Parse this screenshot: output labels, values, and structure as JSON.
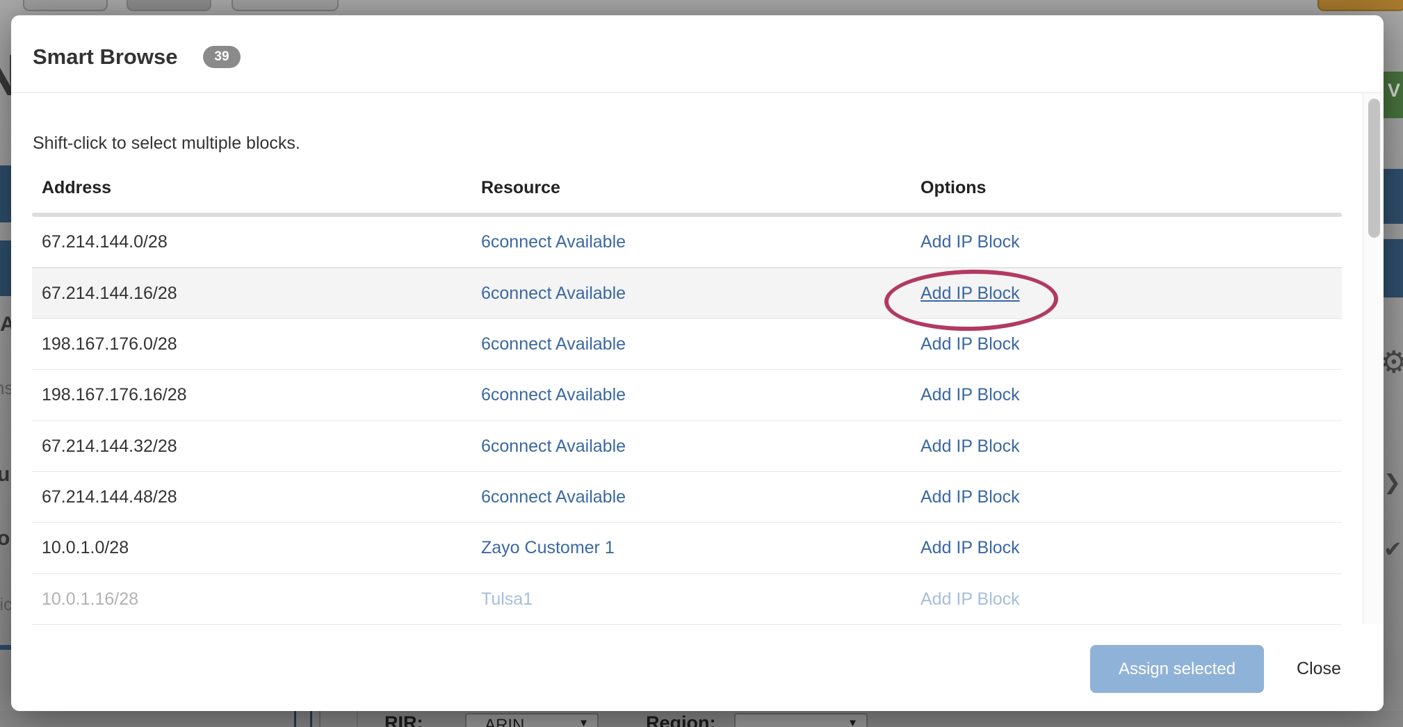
{
  "modal": {
    "title": "Smart Browse",
    "badge_count": "39",
    "hint": "Shift-click to select multiple blocks.",
    "columns": {
      "address": "Address",
      "resource": "Resource",
      "options": "Options"
    },
    "rows": [
      {
        "address": "67.214.144.0/28",
        "resource": "6connect Available",
        "option": "Add IP Block"
      },
      {
        "address": "67.214.144.16/28",
        "resource": "6connect Available",
        "option": "Add IP Block",
        "highlighted": true,
        "circled": true
      },
      {
        "address": "198.167.176.0/28",
        "resource": "6connect Available",
        "option": "Add IP Block"
      },
      {
        "address": "198.167.176.16/28",
        "resource": "6connect Available",
        "option": "Add IP Block"
      },
      {
        "address": "67.214.144.32/28",
        "resource": "6connect Available",
        "option": "Add IP Block"
      },
      {
        "address": "67.214.144.48/28",
        "resource": "6connect Available",
        "option": "Add IP Block"
      },
      {
        "address": "10.0.1.0/28",
        "resource": "Zayo Customer 1",
        "option": "Add IP Block"
      },
      {
        "address": "10.0.1.16/28",
        "resource": "Tulsa1",
        "option": "Add IP Block",
        "faded": true
      }
    ],
    "footer": {
      "assign": "Assign selected",
      "close": "Close"
    }
  },
  "background": {
    "rir_label": "RIR:",
    "rir_value": "ARIN",
    "region_label": "Region:",
    "caret": "▼",
    "green_letter": "V",
    "fragments": {
      "heading": "N",
      "a": "A",
      "ns": "ns",
      "u": "u",
      "o": "o",
      "lic": "lic"
    },
    "icons": {
      "gear": "⚙",
      "chevron": "❯",
      "check": "✔"
    }
  },
  "colors": {
    "link": "#3a68a3",
    "annotation_ellipse": "#b23a60",
    "assign_button": "#8fb2d9",
    "badge": "#8a8a8a",
    "row_highlight": "#f4f4f4"
  }
}
